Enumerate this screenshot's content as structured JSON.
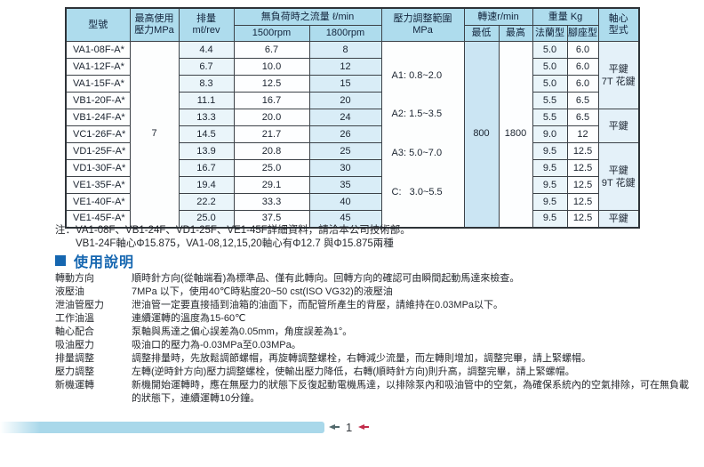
{
  "table": {
    "headers": {
      "model": "型號",
      "max_pressure_l1": "最高使用",
      "max_pressure_l2": "壓力MPa",
      "displacement_l1": "排量",
      "displacement_l2": "mℓ/rev",
      "flow": "無負荷時之流量 ℓ/min",
      "flow_1500": "1500rpm",
      "flow_1800": "1800rpm",
      "pressure_range_l1": "壓力調整範圍",
      "pressure_range_l2": "MPa",
      "speed": "轉速r/min",
      "speed_min": "最低",
      "speed_max": "最高",
      "weight": "重量 Kg",
      "weight_flange": "法蘭型",
      "weight_foot": "腳座型",
      "shaft_l1": "軸心",
      "shaft_l2": "型式"
    },
    "max_pressure": "7",
    "speed_min_value": "800",
    "speed_max_value": "1800",
    "pressure_ranges": [
      "A1: 0.8~2.0",
      "A2: 1.5~3.5",
      "A3: 5.0~7.0",
      "C:   3.0~5.5"
    ],
    "rows": [
      {
        "model": "VA1-08F-A*",
        "disp": "4.4",
        "f1500": "6.7",
        "f1800": "8",
        "wf": "5.0",
        "wb": "6.0"
      },
      {
        "model": "VA1-12F-A*",
        "disp": "6.7",
        "f1500": "10.0",
        "f1800": "12",
        "wf": "5.0",
        "wb": "6.0"
      },
      {
        "model": "VA1-15F-A*",
        "disp": "8.3",
        "f1500": "12.5",
        "f1800": "15",
        "wf": "5.0",
        "wb": "6.0"
      },
      {
        "model": "VB1-20F-A*",
        "disp": "11.1",
        "f1500": "16.7",
        "f1800": "20",
        "wf": "5.5",
        "wb": "6.5"
      },
      {
        "model": "VB1-24F-A*",
        "disp": "13.3",
        "f1500": "20.0",
        "f1800": "24",
        "wf": "5.5",
        "wb": "6.5"
      },
      {
        "model": "VC1-26F-A*",
        "disp": "14.5",
        "f1500": "21.7",
        "f1800": "26",
        "wf": "9.0",
        "wb": "12"
      },
      {
        "model": "VD1-25F-A*",
        "disp": "13.9",
        "f1500": "20.8",
        "f1800": "25",
        "wf": "9.5",
        "wb": "12.5"
      },
      {
        "model": "VD1-30F-A*",
        "disp": "16.7",
        "f1500": "25.0",
        "f1800": "30",
        "wf": "9.5",
        "wb": "12.5"
      },
      {
        "model": "VE1-35F-A*",
        "disp": "19.4",
        "f1500": "29.1",
        "f1800": "35",
        "wf": "9.5",
        "wb": "12.5"
      },
      {
        "model": "VE1-40F-A*",
        "disp": "22.2",
        "f1500": "33.3",
        "f1800": "40",
        "wf": "9.5",
        "wb": "12.5"
      },
      {
        "model": "VE1-45F-A*",
        "disp": "25.0",
        "f1500": "37.5",
        "f1800": "45",
        "wf": "9.5",
        "wb": "12.5"
      }
    ],
    "shaft_groups": [
      {
        "start": 0,
        "span": 4,
        "lines": [
          "平鍵",
          "7T 花鍵"
        ]
      },
      {
        "start": 4,
        "span": 2,
        "lines": [
          "平鍵"
        ]
      },
      {
        "start": 6,
        "span": 4,
        "lines": [
          "平鍵",
          "9T 花鍵"
        ]
      },
      {
        "start": 10,
        "span": 1,
        "lines": [
          "平鍵"
        ]
      }
    ]
  },
  "notes": {
    "line1": "注：VA1-08F、VB1-24F、VD1-25F、VE1-45F詳細資料，請洽本公司技術部。",
    "line2": "VB1-24F軸心Φ15.875，VA1-08,12,15,20軸心有Φ12.7 與Φ15.875兩種"
  },
  "section": {
    "title": "使用說明"
  },
  "usage": [
    {
      "label": "轉動方向",
      "text": "順時針方向(從軸端看)為標準品、僅有此轉向。回轉方向的確認可由瞬間起動馬達來檢查。"
    },
    {
      "label": "液壓油",
      "text": "7MPa 以下，使用40℃時粘度20~50 cst(ISO VG32)的液壓油"
    },
    {
      "label": "泄油管壓力",
      "text": "泄油管一定要直接插到油箱的油面下，而配管所產生的背壓，請維持在0.03MPa以下。"
    },
    {
      "label": "工作油溫",
      "text": "連續運轉的溫度為15-60℃"
    },
    {
      "label": "軸心配合",
      "text": "泵軸與馬達之偏心誤差為0.05mm，角度誤差為1°。"
    },
    {
      "label": "吸油壓力",
      "text": "吸油口的壓力為-0.03MPa至0.03MPa。"
    },
    {
      "label": "排量調整",
      "text": "調整排量時，先放鬆調節螺帽，再旋轉調整螺栓，右轉減少流量，而左轉則增加，調整完畢，請上緊螺帽。"
    },
    {
      "label": "壓力調整",
      "text": "左轉(逆時針方向)壓力調整螺栓，使輸出壓力降低，右轉(順時針方向)則升高，調整完畢，請上緊螺帽。"
    },
    {
      "label": "新機運轉",
      "text": "新機開始運轉時，應在無壓力的狀態下反復起動電機馬達，以排除泵內和吸油管中的空氣，為確保系統內的空氣排除，可在無負載的狀態下，連續運轉10分鐘。"
    }
  ],
  "footer": {
    "page": "1"
  }
}
